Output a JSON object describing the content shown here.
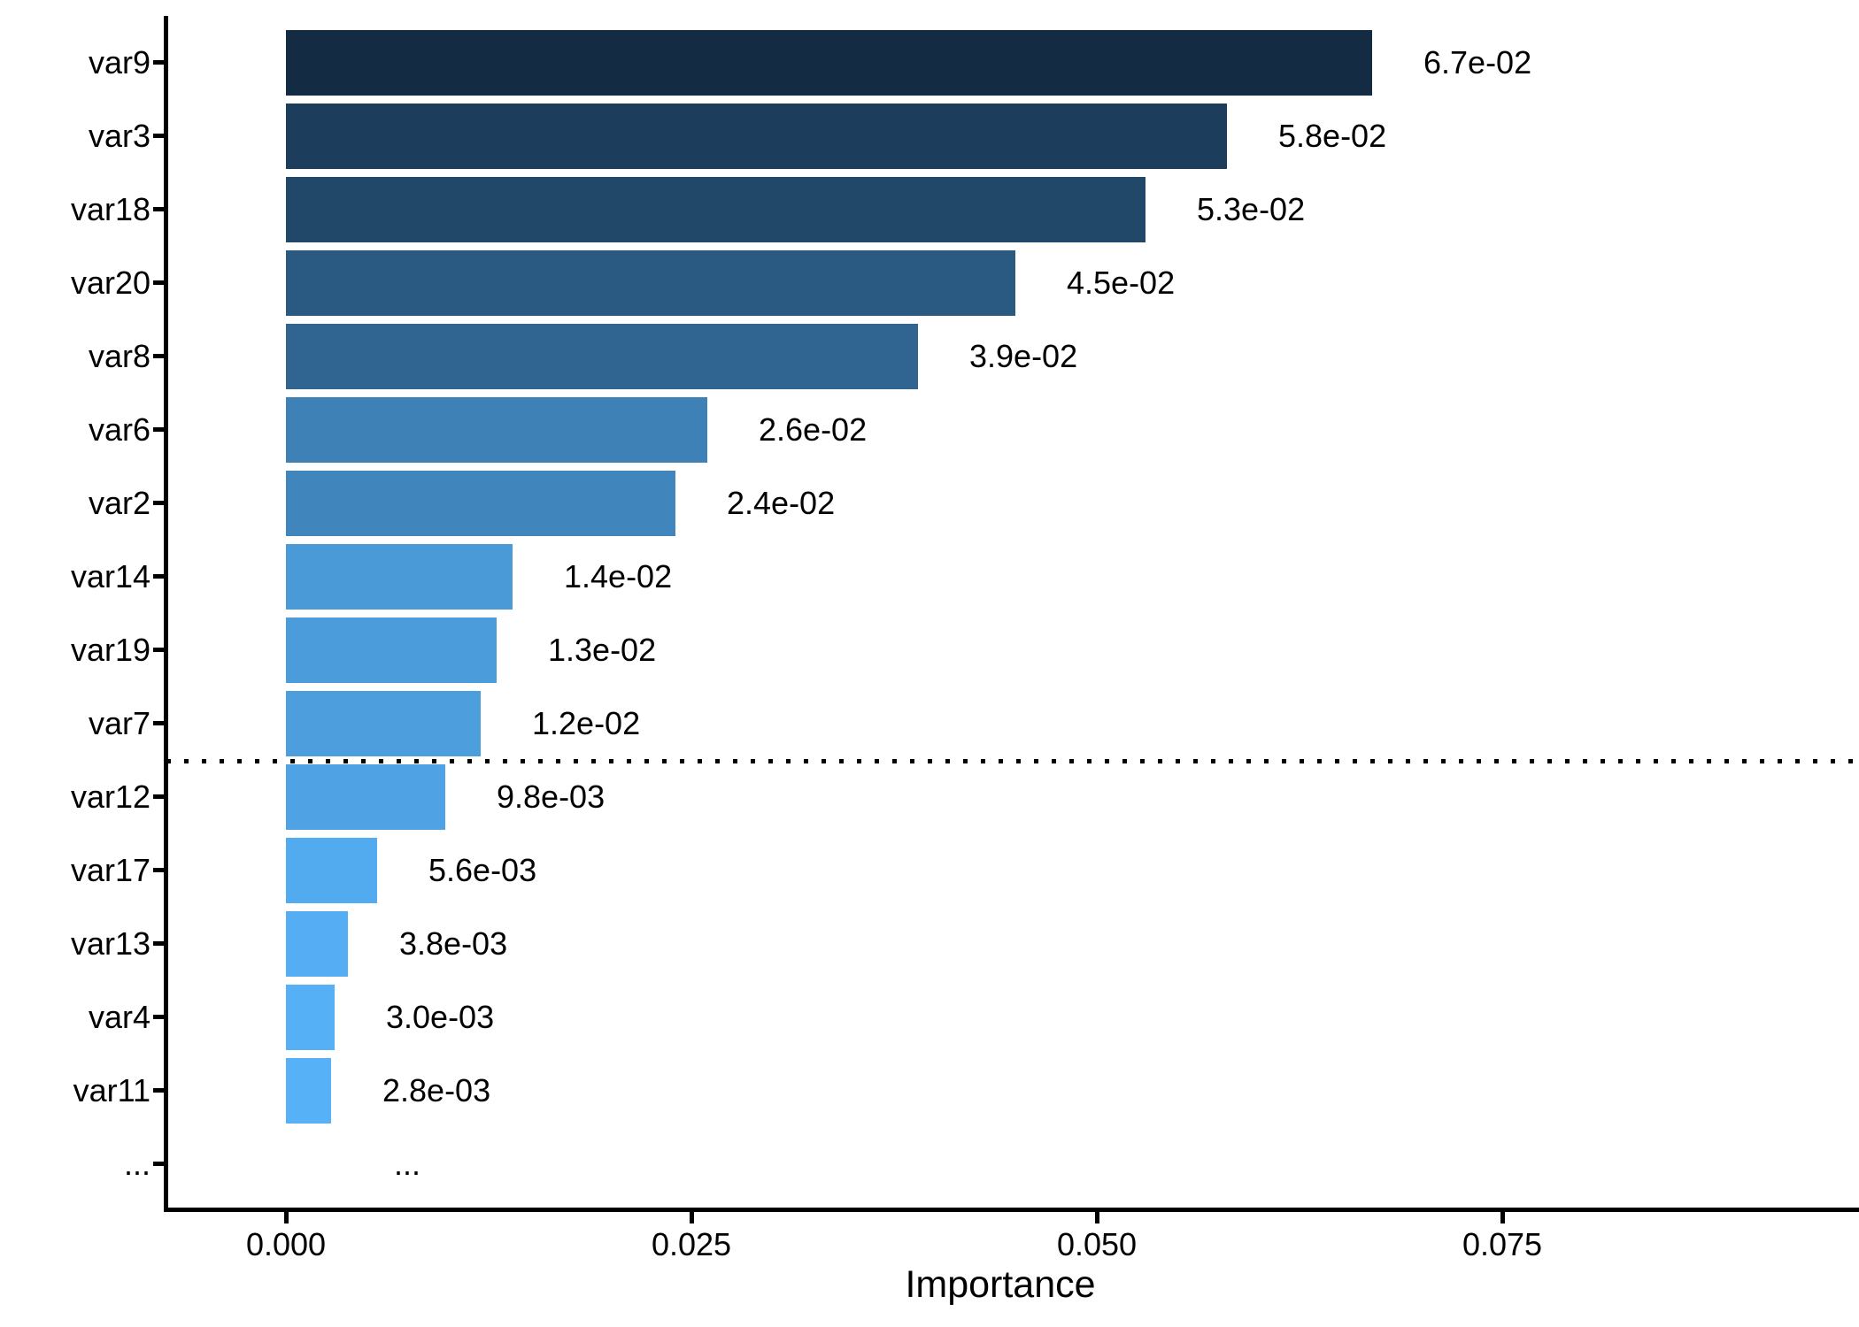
{
  "chart_data": {
    "type": "bar",
    "orientation": "horizontal",
    "title": "",
    "xlabel": "Importance",
    "ylabel": "",
    "categories": [
      "var9",
      "var3",
      "var18",
      "var20",
      "var8",
      "var6",
      "var2",
      "var14",
      "var19",
      "var7",
      "var12",
      "var17",
      "var13",
      "var4",
      "var11",
      "..."
    ],
    "values": [
      0.067,
      0.058,
      0.053,
      0.045,
      0.039,
      0.026,
      0.024,
      0.014,
      0.013,
      0.012,
      0.0098,
      0.0056,
      0.0038,
      0.003,
      0.0028,
      null
    ],
    "value_labels": [
      "6.7e-02",
      "5.8e-02",
      "5.3e-02",
      "4.5e-02",
      "3.9e-02",
      "2.6e-02",
      "2.4e-02",
      "1.4e-02",
      "1.3e-02",
      "1.2e-02",
      "9.8e-03",
      "5.6e-03",
      "3.8e-03",
      "3.0e-03",
      "2.8e-03",
      "..."
    ],
    "bar_colors": [
      "#132B43",
      "#1C3E5C",
      "#224869",
      "#2A5981",
      "#306592",
      "#3E81B6",
      "#4085BC",
      "#4A9AD8",
      "#4B9CDA",
      "#4C9EDD",
      "#4FA2E3",
      "#53ABEF",
      "#55AEF4",
      "#56B0F6",
      "#56B1F7",
      null
    ],
    "x_ticks": [
      "0.000",
      "0.025",
      "0.050",
      "0.075"
    ],
    "x_tick_values": [
      0.0,
      0.025,
      0.05,
      0.075
    ],
    "xlim": [
      -0.0074,
      0.097
    ],
    "grid": false,
    "legend": false,
    "axis_color": "#000000",
    "text_color": "#000000",
    "threshold_line": {
      "style": "dotted",
      "color": "#000000",
      "after_category": "var7",
      "before_category": "var12"
    }
  }
}
